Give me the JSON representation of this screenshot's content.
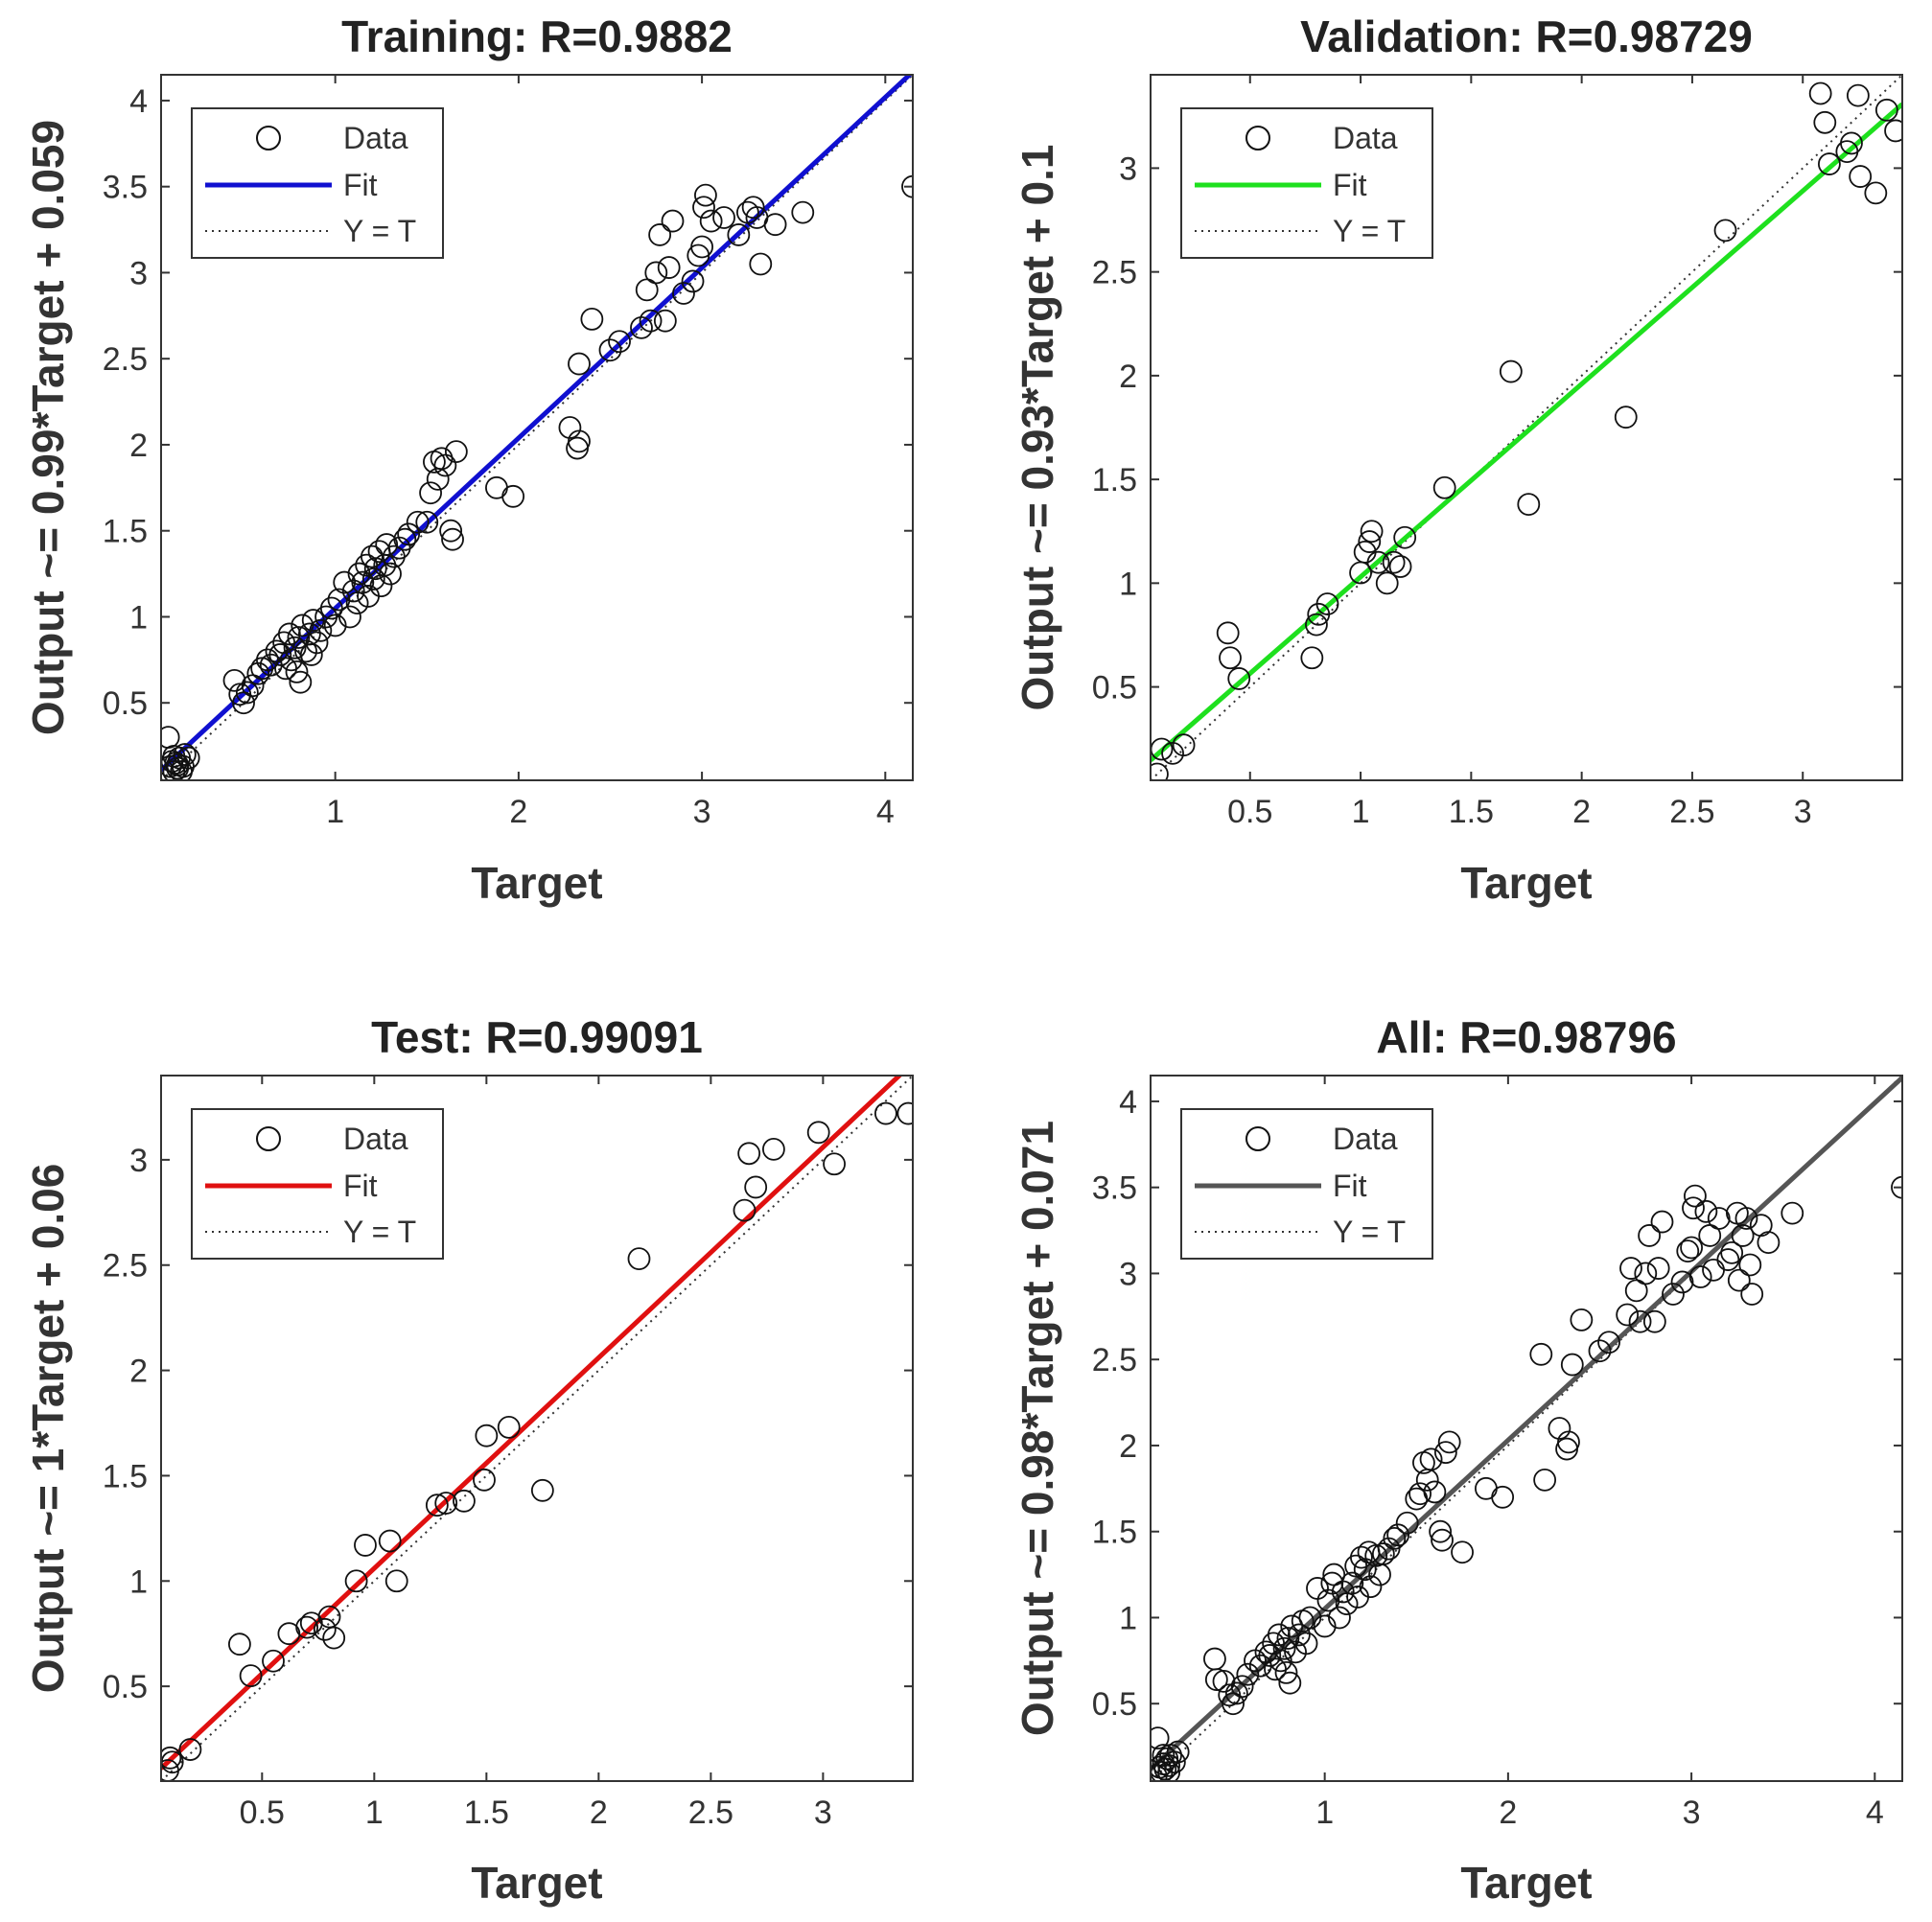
{
  "chart_data": [
    {
      "type": "scatter",
      "title": "Training: R=0.9882",
      "xlabel": "Target",
      "ylabel": "Output ~= 0.99*Target + 0.059",
      "xlim": [
        0.05,
        4.15
      ],
      "ylim": [
        0.05,
        4.15
      ],
      "xticks": [
        1,
        2,
        3,
        4
      ],
      "xtick_labels": [
        "1",
        "2",
        "3",
        "4"
      ],
      "yticks": [
        0.5,
        1,
        1.5,
        2,
        2.5,
        3,
        3.5,
        4
      ],
      "ytick_labels": [
        "0.5",
        "1",
        "1.5",
        "2",
        "2.5",
        "3",
        "3.5",
        "4"
      ],
      "fit": {
        "slope": 0.99,
        "intercept": 0.059,
        "color": "#1010d0"
      },
      "legend": {
        "position": "top-left",
        "entries": [
          "Data",
          "Fit",
          "Y = T"
        ]
      },
      "points": [
        [
          0.09,
          0.3
        ],
        [
          0.1,
          0.13
        ],
        [
          0.12,
          0.1
        ],
        [
          0.13,
          0.15
        ],
        [
          0.14,
          0.12
        ],
        [
          0.15,
          0.18
        ],
        [
          0.16,
          0.1
        ],
        [
          0.18,
          0.2
        ],
        [
          0.11,
          0.16
        ],
        [
          0.14,
          0.14
        ],
        [
          0.17,
          0.13
        ],
        [
          0.2,
          0.18
        ],
        [
          0.12,
          0.19
        ],
        [
          0.45,
          0.63
        ],
        [
          0.48,
          0.55
        ],
        [
          0.5,
          0.5
        ],
        [
          0.52,
          0.56
        ],
        [
          0.55,
          0.6
        ],
        [
          0.58,
          0.67
        ],
        [
          0.6,
          0.7
        ],
        [
          0.63,
          0.75
        ],
        [
          0.65,
          0.72
        ],
        [
          0.68,
          0.8
        ],
        [
          0.7,
          0.78
        ],
        [
          0.72,
          0.85
        ],
        [
          0.73,
          0.7
        ],
        [
          0.75,
          0.9
        ],
        [
          0.76,
          0.75
        ],
        [
          0.78,
          0.82
        ],
        [
          0.79,
          0.68
        ],
        [
          0.8,
          0.88
        ],
        [
          0.81,
          0.62
        ],
        [
          0.82,
          0.95
        ],
        [
          0.84,
          0.8
        ],
        [
          0.86,
          0.9
        ],
        [
          0.87,
          0.78
        ],
        [
          0.88,
          0.98
        ],
        [
          0.9,
          0.85
        ],
        [
          0.92,
          0.92
        ],
        [
          0.95,
          1.0
        ],
        [
          0.98,
          1.05
        ],
        [
          1.0,
          0.95
        ],
        [
          1.02,
          1.1
        ],
        [
          1.05,
          1.2
        ],
        [
          1.08,
          1.0
        ],
        [
          1.1,
          1.15
        ],
        [
          1.12,
          1.08
        ],
        [
          1.13,
          1.25
        ],
        [
          1.15,
          1.2
        ],
        [
          1.17,
          1.3
        ],
        [
          1.18,
          1.12
        ],
        [
          1.2,
          1.35
        ],
        [
          1.21,
          1.22
        ],
        [
          1.22,
          1.28
        ],
        [
          1.24,
          1.38
        ],
        [
          1.25,
          1.18
        ],
        [
          1.27,
          1.3
        ],
        [
          1.28,
          1.42
        ],
        [
          1.3,
          1.25
        ],
        [
          1.32,
          1.35
        ],
        [
          1.35,
          1.4
        ],
        [
          1.38,
          1.45
        ],
        [
          1.4,
          1.48
        ],
        [
          1.45,
          1.55
        ],
        [
          1.5,
          1.55
        ],
        [
          1.52,
          1.72
        ],
        [
          1.54,
          1.9
        ],
        [
          1.56,
          1.8
        ],
        [
          1.58,
          1.92
        ],
        [
          1.6,
          1.88
        ],
        [
          1.63,
          1.5
        ],
        [
          1.64,
          1.45
        ],
        [
          1.66,
          1.96
        ],
        [
          1.88,
          1.75
        ],
        [
          1.97,
          1.7
        ],
        [
          2.28,
          2.1
        ],
        [
          2.32,
          1.98
        ],
        [
          2.33,
          2.02
        ],
        [
          2.33,
          2.47
        ],
        [
          2.4,
          2.73
        ],
        [
          2.5,
          2.55
        ],
        [
          2.55,
          2.6
        ],
        [
          2.67,
          2.68
        ],
        [
          2.7,
          2.9
        ],
        [
          2.72,
          2.72
        ],
        [
          2.75,
          3.0
        ],
        [
          2.77,
          3.22
        ],
        [
          2.8,
          2.72
        ],
        [
          2.82,
          3.03
        ],
        [
          2.84,
          3.3
        ],
        [
          2.9,
          2.88
        ],
        [
          2.95,
          2.95
        ],
        [
          2.98,
          3.1
        ],
        [
          3.0,
          3.15
        ],
        [
          3.01,
          3.38
        ],
        [
          3.02,
          3.45
        ],
        [
          3.05,
          3.3
        ],
        [
          3.12,
          3.32
        ],
        [
          3.2,
          3.22
        ],
        [
          3.25,
          3.35
        ],
        [
          3.28,
          3.38
        ],
        [
          3.3,
          3.32
        ],
        [
          3.32,
          3.05
        ],
        [
          3.4,
          3.28
        ],
        [
          3.55,
          3.35
        ],
        [
          4.15,
          3.5
        ]
      ]
    },
    {
      "type": "scatter",
      "title": "Validation: R=0.98729",
      "xlabel": "Target",
      "ylabel": "Output ~= 0.93*Target + 0.1",
      "xlim": [
        0.05,
        3.45
      ],
      "ylim": [
        0.05,
        3.45
      ],
      "xticks": [
        0.5,
        1,
        1.5,
        2,
        2.5,
        3
      ],
      "xtick_labels": [
        "0.5",
        "1",
        "1.5",
        "2",
        "2.5",
        "3"
      ],
      "yticks": [
        0.5,
        1,
        1.5,
        2,
        2.5,
        3
      ],
      "ytick_labels": [
        "0.5",
        "1",
        "1.5",
        "2",
        "2.5",
        "3"
      ],
      "fit": {
        "slope": 0.93,
        "intercept": 0.1,
        "color": "#1ee01e"
      },
      "legend": {
        "position": "top-left",
        "entries": [
          "Data",
          "Fit",
          "Y = T"
        ]
      },
      "points": [
        [
          0.08,
          0.08
        ],
        [
          0.1,
          0.2
        ],
        [
          0.15,
          0.18
        ],
        [
          0.2,
          0.22
        ],
        [
          0.4,
          0.76
        ],
        [
          0.41,
          0.64
        ],
        [
          0.45,
          0.54
        ],
        [
          0.78,
          0.64
        ],
        [
          0.8,
          0.8
        ],
        [
          0.81,
          0.85
        ],
        [
          0.85,
          0.9
        ],
        [
          1.0,
          1.05
        ],
        [
          1.02,
          1.15
        ],
        [
          1.04,
          1.2
        ],
        [
          1.05,
          1.25
        ],
        [
          1.08,
          1.1
        ],
        [
          1.12,
          1.0
        ],
        [
          1.15,
          1.1
        ],
        [
          1.18,
          1.08
        ],
        [
          1.2,
          1.22
        ],
        [
          1.38,
          1.46
        ],
        [
          1.68,
          2.02
        ],
        [
          1.76,
          1.38
        ],
        [
          2.2,
          1.8
        ],
        [
          2.65,
          2.7
        ],
        [
          3.08,
          3.36
        ],
        [
          3.1,
          3.22
        ],
        [
          3.12,
          3.02
        ],
        [
          3.2,
          3.08
        ],
        [
          3.22,
          3.12
        ],
        [
          3.25,
          3.35
        ],
        [
          3.26,
          2.96
        ],
        [
          3.33,
          2.88
        ],
        [
          3.38,
          3.28
        ],
        [
          3.42,
          3.18
        ]
      ]
    },
    {
      "type": "scatter",
      "title": "Test: R=0.99091",
      "xlabel": "Target",
      "ylabel": "Output ~= 1*Target + 0.06",
      "xlim": [
        0.05,
        3.4
      ],
      "ylim": [
        0.05,
        3.4
      ],
      "xticks": [
        0.5,
        1,
        1.5,
        2,
        2.5,
        3
      ],
      "xtick_labels": [
        "0.5",
        "1",
        "1.5",
        "2",
        "2.5",
        "3"
      ],
      "yticks": [
        0.5,
        1,
        1.5,
        2,
        2.5,
        3
      ],
      "ytick_labels": [
        "0.5",
        "1",
        "1.5",
        "2",
        "2.5",
        "3"
      ],
      "fit": {
        "slope": 1.0,
        "intercept": 0.06,
        "color": "#e01010"
      },
      "legend": {
        "position": "top-left",
        "entries": [
          "Data",
          "Fit",
          "Y = T"
        ]
      },
      "points": [
        [
          0.08,
          0.1
        ],
        [
          0.09,
          0.16
        ],
        [
          0.1,
          0.14
        ],
        [
          0.18,
          0.2
        ],
        [
          0.4,
          0.7
        ],
        [
          0.45,
          0.55
        ],
        [
          0.55,
          0.62
        ],
        [
          0.62,
          0.75
        ],
        [
          0.7,
          0.78
        ],
        [
          0.72,
          0.8
        ],
        [
          0.78,
          0.77
        ],
        [
          0.8,
          0.83
        ],
        [
          0.82,
          0.73
        ],
        [
          0.92,
          1.0
        ],
        [
          0.96,
          1.17
        ],
        [
          1.07,
          1.19
        ],
        [
          1.1,
          1.0
        ],
        [
          1.28,
          1.36
        ],
        [
          1.32,
          1.37
        ],
        [
          1.4,
          1.38
        ],
        [
          1.49,
          1.48
        ],
        [
          1.5,
          1.69
        ],
        [
          1.6,
          1.73
        ],
        [
          1.75,
          1.43
        ],
        [
          2.18,
          2.53
        ],
        [
          2.65,
          2.76
        ],
        [
          2.67,
          3.03
        ],
        [
          2.7,
          2.87
        ],
        [
          2.78,
          3.05
        ],
        [
          2.98,
          3.13
        ],
        [
          3.05,
          2.98
        ],
        [
          3.28,
          3.22
        ],
        [
          3.38,
          3.22
        ]
      ]
    },
    {
      "type": "scatter",
      "title": "All: R=0.98796",
      "xlabel": "Target",
      "ylabel": "Output ~= 0.98*Target + 0.071",
      "xlim": [
        0.05,
        4.15
      ],
      "ylim": [
        0.05,
        4.15
      ],
      "xticks": [
        1,
        2,
        3,
        4
      ],
      "xtick_labels": [
        "1",
        "2",
        "3",
        "4"
      ],
      "yticks": [
        0.5,
        1,
        1.5,
        2,
        2.5,
        3,
        3.5,
        4
      ],
      "ytick_labels": [
        "0.5",
        "1",
        "1.5",
        "2",
        "2.5",
        "3",
        "3.5",
        "4"
      ],
      "fit": {
        "slope": 0.98,
        "intercept": 0.071,
        "color": "#555555"
      },
      "legend": {
        "position": "top-left",
        "entries": [
          "Data",
          "Fit",
          "Y = T"
        ]
      },
      "points": [
        [
          0.08,
          0.08
        ],
        [
          0.09,
          0.3
        ],
        [
          0.1,
          0.13
        ],
        [
          0.11,
          0.1
        ],
        [
          0.12,
          0.15
        ],
        [
          0.13,
          0.12
        ],
        [
          0.14,
          0.18
        ],
        [
          0.15,
          0.1
        ],
        [
          0.16,
          0.2
        ],
        [
          0.18,
          0.16
        ],
        [
          0.12,
          0.2
        ],
        [
          0.15,
          0.14
        ],
        [
          0.2,
          0.22
        ],
        [
          0.4,
          0.76
        ],
        [
          0.41,
          0.64
        ],
        [
          0.45,
          0.63
        ],
        [
          0.48,
          0.55
        ],
        [
          0.5,
          0.5
        ],
        [
          0.52,
          0.56
        ],
        [
          0.55,
          0.6
        ],
        [
          0.58,
          0.67
        ],
        [
          0.62,
          0.75
        ],
        [
          0.65,
          0.72
        ],
        [
          0.68,
          0.8
        ],
        [
          0.7,
          0.78
        ],
        [
          0.72,
          0.85
        ],
        [
          0.73,
          0.7
        ],
        [
          0.75,
          0.9
        ],
        [
          0.76,
          0.75
        ],
        [
          0.78,
          0.82
        ],
        [
          0.79,
          0.68
        ],
        [
          0.8,
          0.88
        ],
        [
          0.81,
          0.62
        ],
        [
          0.82,
          0.95
        ],
        [
          0.84,
          0.8
        ],
        [
          0.86,
          0.9
        ],
        [
          0.88,
          0.98
        ],
        [
          0.9,
          0.85
        ],
        [
          0.92,
          1.0
        ],
        [
          0.96,
          1.17
        ],
        [
          1.0,
          0.95
        ],
        [
          1.02,
          1.1
        ],
        [
          1.04,
          1.2
        ],
        [
          1.05,
          1.25
        ],
        [
          1.08,
          1.0
        ],
        [
          1.1,
          1.15
        ],
        [
          1.12,
          1.08
        ],
        [
          1.15,
          1.2
        ],
        [
          1.17,
          1.3
        ],
        [
          1.18,
          1.12
        ],
        [
          1.2,
          1.35
        ],
        [
          1.22,
          1.28
        ],
        [
          1.24,
          1.38
        ],
        [
          1.25,
          1.18
        ],
        [
          1.28,
          1.36
        ],
        [
          1.3,
          1.25
        ],
        [
          1.32,
          1.37
        ],
        [
          1.35,
          1.4
        ],
        [
          1.38,
          1.46
        ],
        [
          1.4,
          1.48
        ],
        [
          1.45,
          1.55
        ],
        [
          1.5,
          1.69
        ],
        [
          1.52,
          1.72
        ],
        [
          1.54,
          1.9
        ],
        [
          1.56,
          1.8
        ],
        [
          1.58,
          1.92
        ],
        [
          1.6,
          1.73
        ],
        [
          1.63,
          1.5
        ],
        [
          1.64,
          1.45
        ],
        [
          1.66,
          1.96
        ],
        [
          1.68,
          2.02
        ],
        [
          1.75,
          1.38
        ],
        [
          1.88,
          1.75
        ],
        [
          1.97,
          1.7
        ],
        [
          2.18,
          2.53
        ],
        [
          2.2,
          1.8
        ],
        [
          2.28,
          2.1
        ],
        [
          2.32,
          1.98
        ],
        [
          2.33,
          2.02
        ],
        [
          2.35,
          2.47
        ],
        [
          2.4,
          2.73
        ],
        [
          2.5,
          2.55
        ],
        [
          2.55,
          2.6
        ],
        [
          2.65,
          2.76
        ],
        [
          2.67,
          3.03
        ],
        [
          2.7,
          2.9
        ],
        [
          2.72,
          2.72
        ],
        [
          2.75,
          3.0
        ],
        [
          2.77,
          3.22
        ],
        [
          2.8,
          2.72
        ],
        [
          2.82,
          3.03
        ],
        [
          2.84,
          3.3
        ],
        [
          2.9,
          2.88
        ],
        [
          2.95,
          2.95
        ],
        [
          2.98,
          3.13
        ],
        [
          3.0,
          3.15
        ],
        [
          3.01,
          3.38
        ],
        [
          3.02,
          3.45
        ],
        [
          3.05,
          2.98
        ],
        [
          3.08,
          3.36
        ],
        [
          3.1,
          3.22
        ],
        [
          3.12,
          3.02
        ],
        [
          3.15,
          3.32
        ],
        [
          3.2,
          3.08
        ],
        [
          3.22,
          3.12
        ],
        [
          3.25,
          3.35
        ],
        [
          3.26,
          2.96
        ],
        [
          3.28,
          3.22
        ],
        [
          3.3,
          3.32
        ],
        [
          3.32,
          3.05
        ],
        [
          3.33,
          2.88
        ],
        [
          3.38,
          3.28
        ],
        [
          3.42,
          3.18
        ],
        [
          3.55,
          3.35
        ],
        [
          4.15,
          3.5
        ]
      ]
    }
  ]
}
